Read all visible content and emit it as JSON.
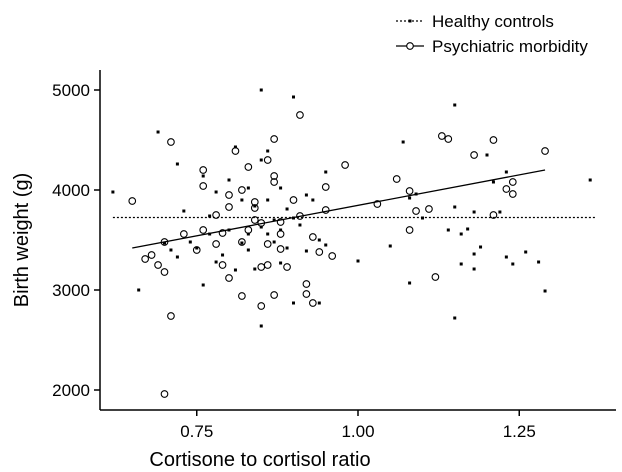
{
  "chart_data": {
    "type": "scatter",
    "xlabel": "Cortisone to cortisol ratio",
    "ylabel": "Birth weight (g)",
    "xlim": [
      0.6,
      1.4
    ],
    "ylim": [
      1800,
      5200
    ],
    "x_ticks": [
      0.75,
      1.0,
      1.25
    ],
    "x_tick_labels": [
      "0.75",
      "1.00",
      "1.25"
    ],
    "y_ticks": [
      2000,
      3000,
      4000,
      5000
    ],
    "y_tick_labels": [
      "2000",
      "3000",
      "4000",
      "5000"
    ],
    "legend_position": "top-right",
    "series": [
      {
        "name": "Healthy controls",
        "marker": "small filled square",
        "fit_line": {
          "style": "dotted",
          "x": [
            0.62,
            1.37
          ],
          "y": [
            3725,
            3725
          ]
        },
        "points": [
          [
            0.62,
            3980
          ],
          [
            0.66,
            3000
          ],
          [
            0.69,
            4580
          ],
          [
            0.7,
            3470
          ],
          [
            0.71,
            3400
          ],
          [
            0.72,
            3330
          ],
          [
            0.72,
            4260
          ],
          [
            0.73,
            3790
          ],
          [
            0.74,
            3480
          ],
          [
            0.75,
            3420
          ],
          [
            0.76,
            3050
          ],
          [
            0.76,
            4140
          ],
          [
            0.77,
            3740
          ],
          [
            0.77,
            3560
          ],
          [
            0.78,
            3280
          ],
          [
            0.78,
            3980
          ],
          [
            0.79,
            3350
          ],
          [
            0.8,
            4100
          ],
          [
            0.8,
            3600
          ],
          [
            0.81,
            3200
          ],
          [
            0.81,
            4430
          ],
          [
            0.82,
            3470
          ],
          [
            0.82,
            3900
          ],
          [
            0.83,
            3560
          ],
          [
            0.83,
            4020
          ],
          [
            0.83,
            3400
          ],
          [
            0.84,
            3210
          ],
          [
            0.84,
            3840
          ],
          [
            0.85,
            3630
          ],
          [
            0.85,
            4300
          ],
          [
            0.85,
            5000
          ],
          [
            0.85,
            2640
          ],
          [
            0.86,
            3560
          ],
          [
            0.86,
            3900
          ],
          [
            0.86,
            4390
          ],
          [
            0.87,
            3700
          ],
          [
            0.87,
            3480
          ],
          [
            0.88,
            3600
          ],
          [
            0.88,
            4020
          ],
          [
            0.88,
            3270
          ],
          [
            0.89,
            3810
          ],
          [
            0.89,
            3420
          ],
          [
            0.9,
            4930
          ],
          [
            0.9,
            3720
          ],
          [
            0.9,
            2870
          ],
          [
            0.91,
            3650
          ],
          [
            0.92,
            3950
          ],
          [
            0.92,
            3390
          ],
          [
            0.93,
            3900
          ],
          [
            0.94,
            2870
          ],
          [
            0.94,
            3500
          ],
          [
            0.95,
            3450
          ],
          [
            0.95,
            4180
          ],
          [
            1.0,
            3290
          ],
          [
            1.05,
            3440
          ],
          [
            1.07,
            4480
          ],
          [
            1.08,
            3920
          ],
          [
            1.08,
            3070
          ],
          [
            1.09,
            3960
          ],
          [
            1.1,
            3720
          ],
          [
            1.14,
            3600
          ],
          [
            1.15,
            3830
          ],
          [
            1.15,
            4850
          ],
          [
            1.15,
            2720
          ],
          [
            1.16,
            3560
          ],
          [
            1.16,
            3260
          ],
          [
            1.17,
            3610
          ],
          [
            1.18,
            3360
          ],
          [
            1.18,
            3780
          ],
          [
            1.18,
            3210
          ],
          [
            1.19,
            3430
          ],
          [
            1.2,
            4350
          ],
          [
            1.21,
            4080
          ],
          [
            1.22,
            3780
          ],
          [
            1.23,
            3330
          ],
          [
            1.23,
            4180
          ],
          [
            1.24,
            3260
          ],
          [
            1.26,
            3380
          ],
          [
            1.28,
            3280
          ],
          [
            1.29,
            2990
          ],
          [
            1.36,
            4100
          ]
        ]
      },
      {
        "name": "Psychiatric morbidity",
        "marker": "open circle",
        "fit_line": {
          "style": "solid",
          "x": [
            0.65,
            1.29
          ],
          "y": [
            3420,
            4200
          ]
        },
        "points": [
          [
            0.65,
            3890
          ],
          [
            0.67,
            3310
          ],
          [
            0.68,
            3350
          ],
          [
            0.69,
            3250
          ],
          [
            0.7,
            3480
          ],
          [
            0.7,
            3180
          ],
          [
            0.7,
            1960
          ],
          [
            0.71,
            2740
          ],
          [
            0.71,
            4480
          ],
          [
            0.73,
            3560
          ],
          [
            0.75,
            3400
          ],
          [
            0.76,
            4200
          ],
          [
            0.76,
            4040
          ],
          [
            0.76,
            3600
          ],
          [
            0.78,
            3460
          ],
          [
            0.78,
            3750
          ],
          [
            0.79,
            3250
          ],
          [
            0.79,
            3570
          ],
          [
            0.8,
            3120
          ],
          [
            0.8,
            3830
          ],
          [
            0.8,
            3950
          ],
          [
            0.81,
            4390
          ],
          [
            0.82,
            4000
          ],
          [
            0.82,
            3480
          ],
          [
            0.82,
            2940
          ],
          [
            0.83,
            4230
          ],
          [
            0.83,
            3600
          ],
          [
            0.84,
            3700
          ],
          [
            0.84,
            3880
          ],
          [
            0.84,
            3820
          ],
          [
            0.85,
            2840
          ],
          [
            0.85,
            3230
          ],
          [
            0.85,
            3670
          ],
          [
            0.86,
            3460
          ],
          [
            0.86,
            4300
          ],
          [
            0.86,
            3250
          ],
          [
            0.87,
            4510
          ],
          [
            0.87,
            2950
          ],
          [
            0.87,
            4140
          ],
          [
            0.87,
            4080
          ],
          [
            0.88,
            3560
          ],
          [
            0.88,
            3410
          ],
          [
            0.88,
            3680
          ],
          [
            0.89,
            3230
          ],
          [
            0.9,
            3900
          ],
          [
            0.91,
            4750
          ],
          [
            0.91,
            3740
          ],
          [
            0.92,
            3060
          ],
          [
            0.92,
            2960
          ],
          [
            0.93,
            3530
          ],
          [
            0.93,
            2870
          ],
          [
            0.94,
            3380
          ],
          [
            0.95,
            4030
          ],
          [
            0.95,
            3800
          ],
          [
            0.96,
            3340
          ],
          [
            0.98,
            4250
          ],
          [
            1.03,
            3860
          ],
          [
            1.06,
            4110
          ],
          [
            1.08,
            3990
          ],
          [
            1.08,
            3600
          ],
          [
            1.09,
            3790
          ],
          [
            1.11,
            3810
          ],
          [
            1.12,
            3130
          ],
          [
            1.13,
            4540
          ],
          [
            1.14,
            4510
          ],
          [
            1.18,
            4350
          ],
          [
            1.21,
            4500
          ],
          [
            1.21,
            3750
          ],
          [
            1.23,
            4010
          ],
          [
            1.24,
            3960
          ],
          [
            1.24,
            4080
          ],
          [
            1.29,
            4390
          ]
        ]
      }
    ]
  }
}
